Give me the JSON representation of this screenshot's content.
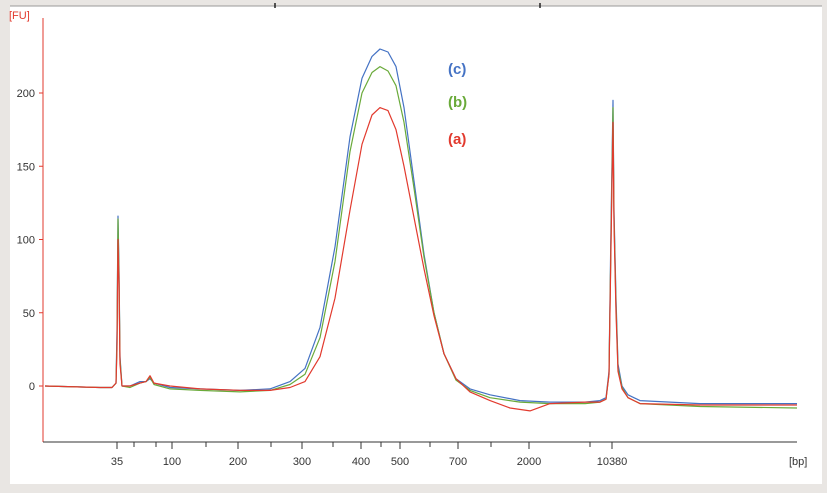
{
  "chart_data": {
    "type": "line",
    "y_unit_label": "[FU]",
    "x_unit_label": "[bp]",
    "ylim": [
      -38,
      255
    ],
    "y_ticks": [
      0,
      50,
      100,
      150,
      200
    ],
    "x_ticks": [
      {
        "label": "35",
        "pos": 117
      },
      {
        "label": "100",
        "pos": 172
      },
      {
        "label": "200",
        "pos": 238
      },
      {
        "label": "300",
        "pos": 302
      },
      {
        "label": "400",
        "pos": 361
      },
      {
        "label": "500",
        "pos": 400
      },
      {
        "label": "700",
        "pos": 458
      },
      {
        "label": "2000",
        "pos": 529
      },
      {
        "label": "10380",
        "pos": 612
      }
    ],
    "x_minor_ticks": [
      134,
      156,
      206,
      271,
      333,
      381,
      430,
      491,
      590
    ],
    "top_marks": [
      275,
      540
    ],
    "grid": false,
    "series": [
      {
        "name": "(c)",
        "color": "#4472c4",
        "points": [
          [
            45,
            0
          ],
          [
            100,
            -1
          ],
          [
            112,
            -1
          ],
          [
            116,
            2
          ],
          [
            117,
            38
          ],
          [
            118,
            116
          ],
          [
            119,
            80
          ],
          [
            120,
            20
          ],
          [
            122,
            0
          ],
          [
            130,
            0
          ],
          [
            140,
            3
          ],
          [
            146,
            3
          ],
          [
            150,
            5
          ],
          [
            154,
            2
          ],
          [
            170,
            -1
          ],
          [
            200,
            -2
          ],
          [
            240,
            -3
          ],
          [
            270,
            -2
          ],
          [
            290,
            3
          ],
          [
            305,
            12
          ],
          [
            320,
            40
          ],
          [
            335,
            95
          ],
          [
            350,
            170
          ],
          [
            362,
            210
          ],
          [
            372,
            225
          ],
          [
            380,
            230
          ],
          [
            388,
            228
          ],
          [
            396,
            218
          ],
          [
            404,
            190
          ],
          [
            414,
            140
          ],
          [
            424,
            90
          ],
          [
            434,
            50
          ],
          [
            444,
            22
          ],
          [
            456,
            5
          ],
          [
            470,
            -2
          ],
          [
            490,
            -6
          ],
          [
            520,
            -10
          ],
          [
            550,
            -11
          ],
          [
            585,
            -11
          ],
          [
            600,
            -10
          ],
          [
            606,
            -8
          ],
          [
            609,
            10
          ],
          [
            611,
            110
          ],
          [
            613,
            195
          ],
          [
            614,
            120
          ],
          [
            616,
            60
          ],
          [
            618,
            15
          ],
          [
            622,
            0
          ],
          [
            628,
            -6
          ],
          [
            640,
            -10
          ],
          [
            700,
            -12
          ],
          [
            797,
            -12
          ]
        ]
      },
      {
        "name": "(b)",
        "color": "#6aaa3a",
        "points": [
          [
            45,
            0
          ],
          [
            100,
            -1
          ],
          [
            112,
            -1
          ],
          [
            116,
            2
          ],
          [
            117,
            30
          ],
          [
            118,
            114
          ],
          [
            119,
            75
          ],
          [
            120,
            18
          ],
          [
            122,
            0
          ],
          [
            130,
            -1
          ],
          [
            140,
            2
          ],
          [
            146,
            3
          ],
          [
            150,
            6
          ],
          [
            154,
            1
          ],
          [
            170,
            -2
          ],
          [
            200,
            -3
          ],
          [
            240,
            -4
          ],
          [
            270,
            -3
          ],
          [
            290,
            1
          ],
          [
            305,
            8
          ],
          [
            320,
            33
          ],
          [
            335,
            85
          ],
          [
            350,
            160
          ],
          [
            362,
            200
          ],
          [
            372,
            214
          ],
          [
            380,
            218
          ],
          [
            388,
            215
          ],
          [
            396,
            205
          ],
          [
            404,
            180
          ],
          [
            414,
            135
          ],
          [
            424,
            88
          ],
          [
            434,
            50
          ],
          [
            444,
            22
          ],
          [
            456,
            4
          ],
          [
            470,
            -3
          ],
          [
            490,
            -8
          ],
          [
            520,
            -11
          ],
          [
            550,
            -12
          ],
          [
            585,
            -12
          ],
          [
            600,
            -11
          ],
          [
            606,
            -9
          ],
          [
            609,
            8
          ],
          [
            611,
            100
          ],
          [
            613,
            190
          ],
          [
            614,
            115
          ],
          [
            616,
            55
          ],
          [
            618,
            12
          ],
          [
            622,
            -1
          ],
          [
            628,
            -8
          ],
          [
            640,
            -12
          ],
          [
            700,
            -14
          ],
          [
            797,
            -15
          ]
        ]
      },
      {
        "name": "(a)",
        "color": "#e23a2e",
        "points": [
          [
            45,
            0
          ],
          [
            100,
            -1
          ],
          [
            112,
            -1
          ],
          [
            116,
            2
          ],
          [
            117,
            25
          ],
          [
            118,
            100
          ],
          [
            119,
            70
          ],
          [
            120,
            15
          ],
          [
            122,
            0
          ],
          [
            130,
            0
          ],
          [
            140,
            2
          ],
          [
            146,
            3
          ],
          [
            150,
            7
          ],
          [
            154,
            2
          ],
          [
            170,
            0
          ],
          [
            200,
            -2
          ],
          [
            240,
            -3
          ],
          [
            270,
            -3
          ],
          [
            290,
            -1
          ],
          [
            305,
            3
          ],
          [
            320,
            20
          ],
          [
            335,
            60
          ],
          [
            350,
            120
          ],
          [
            362,
            165
          ],
          [
            372,
            185
          ],
          [
            380,
            190
          ],
          [
            388,
            188
          ],
          [
            396,
            175
          ],
          [
            404,
            150
          ],
          [
            414,
            115
          ],
          [
            424,
            80
          ],
          [
            434,
            48
          ],
          [
            444,
            22
          ],
          [
            456,
            5
          ],
          [
            470,
            -4
          ],
          [
            490,
            -10
          ],
          [
            510,
            -15
          ],
          [
            530,
            -17
          ],
          [
            550,
            -12
          ],
          [
            585,
            -11
          ],
          [
            600,
            -11
          ],
          [
            606,
            -9
          ],
          [
            609,
            8
          ],
          [
            611,
            95
          ],
          [
            613,
            180
          ],
          [
            614,
            110
          ],
          [
            616,
            50
          ],
          [
            618,
            10
          ],
          [
            622,
            -2
          ],
          [
            628,
            -8
          ],
          [
            640,
            -12
          ],
          [
            700,
            -13
          ],
          [
            797,
            -13
          ]
        ]
      }
    ],
    "legend_order": [
      "(c)",
      "(b)",
      "(a)"
    ]
  }
}
